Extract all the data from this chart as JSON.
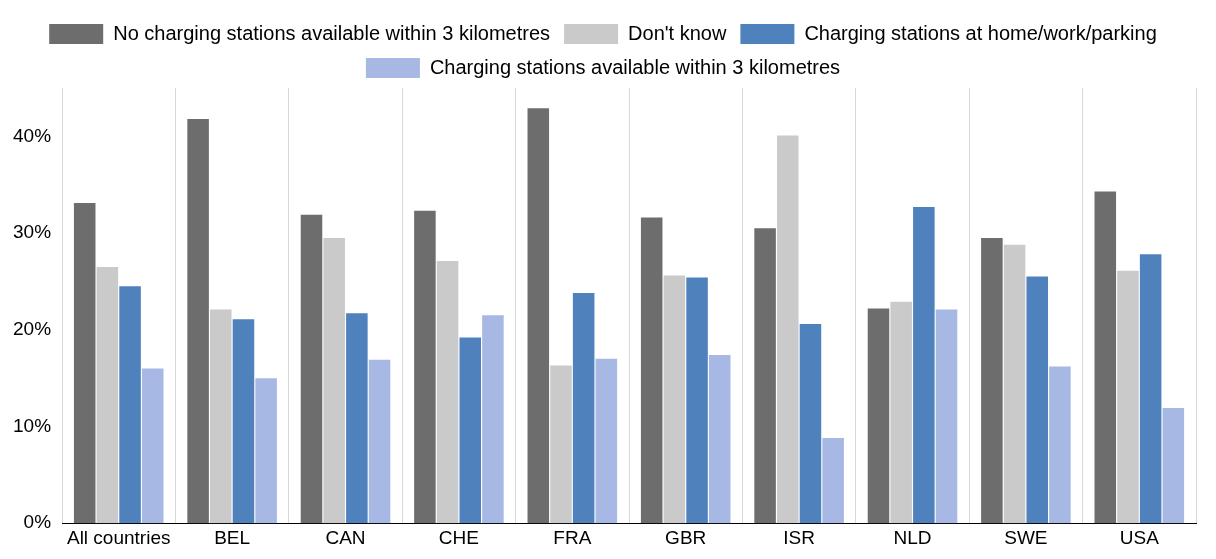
{
  "chart_data": {
    "type": "bar",
    "categories": [
      "All countries",
      "BEL",
      "CAN",
      "CHE",
      "FRA",
      "GBR",
      "ISR",
      "NLD",
      "SWE",
      "USA"
    ],
    "series": [
      {
        "name": "No charging stations available within 3 kilometres",
        "color": "#6d6d6d",
        "values": [
          33.1,
          41.8,
          31.9,
          32.3,
          42.9,
          31.6,
          30.5,
          22.2,
          29.5,
          34.3
        ]
      },
      {
        "name": "Don't know",
        "color": "#cacaca",
        "values": [
          26.5,
          22.1,
          29.5,
          27.1,
          16.3,
          25.6,
          40.1,
          22.9,
          28.8,
          26.1
        ]
      },
      {
        "name": "Charging stations at home/work/parking",
        "color": "#4f81bd",
        "values": [
          24.5,
          21.1,
          21.7,
          19.2,
          23.8,
          25.4,
          20.6,
          32.7,
          25.5,
          27.8
        ]
      },
      {
        "name": "Charging stations available within 3 kilometres",
        "color": "#a7b8e4",
        "values": [
          16.0,
          15.0,
          16.9,
          21.5,
          17.0,
          17.4,
          8.8,
          22.1,
          16.2,
          11.9
        ]
      }
    ],
    "ylim": [
      0,
      45
    ],
    "yticks": [
      {
        "value": 0,
        "label": "0%"
      },
      {
        "value": 10,
        "label": "10%"
      },
      {
        "value": 20,
        "label": "20%"
      },
      {
        "value": 30,
        "label": "30%"
      },
      {
        "value": 40,
        "label": "40%"
      }
    ],
    "grid": "x",
    "legend": "top"
  }
}
